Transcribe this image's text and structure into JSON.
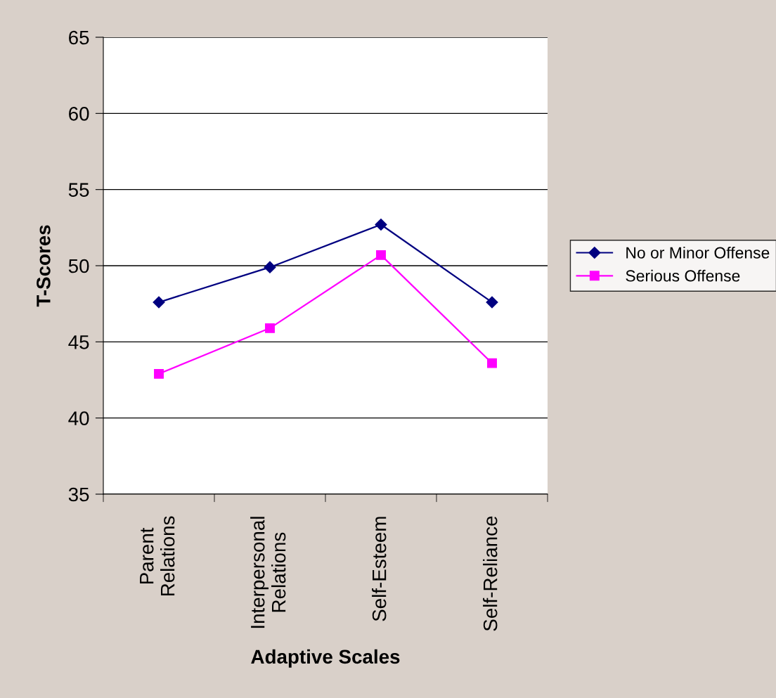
{
  "chart_data": {
    "type": "line",
    "xlabel": "Adaptive Scales",
    "ylabel": "T-Scores",
    "categories": [
      "Parent\nRelations",
      "Interpersonal\nRelations",
      "Self-Esteem",
      "Self-Reliance"
    ],
    "series": [
      {
        "name": "No or Minor Offense",
        "color": "#000080",
        "marker": "diamond",
        "values": [
          47.6,
          49.9,
          52.7,
          47.6
        ]
      },
      {
        "name": "Serious Offense",
        "color": "#ff00ff",
        "marker": "square",
        "values": [
          42.9,
          45.9,
          50.7,
          43.6
        ]
      }
    ],
    "ylim": [
      35,
      65
    ],
    "yticks": [
      35,
      40,
      45,
      50,
      55,
      60,
      65
    ],
    "grid": "y",
    "legend": "right",
    "line_style": "solid"
  }
}
